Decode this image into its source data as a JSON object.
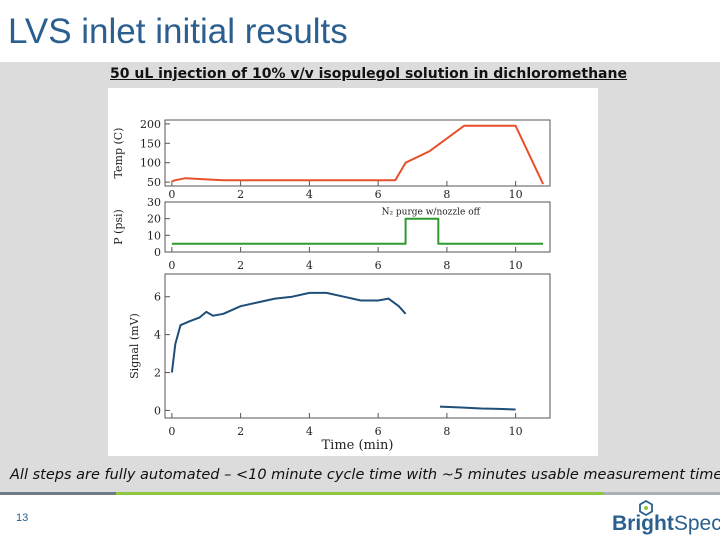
{
  "slide": {
    "title": "LVS inlet initial results",
    "subtitle": "50 uL injection of 10% v/v isopulegol solution in dichloromethane",
    "caption": "All steps are fully automated – <10 minute cycle time with ~5 minutes usable measurement time",
    "page_number": "13",
    "logo": {
      "part1": "Bright",
      "part2": "Spec",
      "icon": "hexagon-molecule-icon"
    }
  },
  "colors": {
    "title": "#2a5f8f",
    "temp_series": "#e8502c",
    "pressure_series": "#2e9a2e",
    "signal_series": "#1f4e79",
    "accent_green": "#8dc63f"
  },
  "chart_data": [
    {
      "type": "line",
      "ylabel": "Temp (C)",
      "xlim": [
        -0.2,
        11
      ],
      "ylim": [
        40,
        210
      ],
      "yticks": [
        50,
        100,
        150,
        200
      ],
      "yticklabels": [
        "50",
        "100",
        "150",
        "200"
      ],
      "xticks": [
        0,
        2,
        4,
        6,
        8,
        10
      ],
      "series": [
        {
          "x": [
            0.0,
            0.1,
            0.4,
            1.0,
            1.5,
            2.0,
            6.5,
            6.8,
            7.5,
            8.5,
            10.0,
            10.8
          ],
          "y": [
            52,
            55,
            60,
            57,
            55,
            55,
            55,
            100,
            130,
            195,
            195,
            45
          ]
        }
      ]
    },
    {
      "type": "line",
      "ylabel": "P (psi)",
      "xlim": [
        -0.2,
        11
      ],
      "ylim": [
        0,
        30
      ],
      "yticks": [
        0,
        10,
        20,
        30
      ],
      "yticklabels": [
        "0",
        "10",
        "20",
        "30"
      ],
      "xticks": [
        0,
        2,
        4,
        6,
        8,
        10
      ],
      "annotations": [
        {
          "text": "N₂ purge w/nozzle off",
          "x": 6.1,
          "y": 25
        }
      ],
      "series": [
        {
          "x": [
            0.0,
            6.8,
            6.8,
            7.75,
            7.75,
            10.8
          ],
          "y": [
            5,
            5,
            20,
            20,
            5,
            5
          ]
        }
      ]
    },
    {
      "type": "line",
      "xlabel": "Time (min)",
      "ylabel": "Signal (mV)",
      "xlim": [
        -0.2,
        11
      ],
      "ylim": [
        -0.4,
        7.2
      ],
      "yticks": [
        0,
        2,
        4,
        6
      ],
      "yticklabels": [
        "0",
        "2",
        "4",
        "6"
      ],
      "xticks": [
        0,
        2,
        4,
        6,
        8,
        10
      ],
      "series": [
        {
          "x": [
            0.0,
            0.1,
            0.25,
            0.5,
            0.8,
            1.0,
            1.2,
            1.5,
            2.0,
            2.5,
            3.0,
            3.5,
            4.0,
            4.5,
            5.0,
            5.5,
            6.0,
            6.3,
            6.6,
            6.8
          ],
          "y": [
            2.0,
            3.5,
            4.5,
            4.7,
            4.9,
            5.2,
            5.0,
            5.1,
            5.5,
            5.7,
            5.9,
            6.0,
            6.2,
            6.2,
            6.0,
            5.8,
            5.8,
            5.9,
            5.5,
            5.1
          ]
        },
        {
          "x": [
            7.8,
            8.5,
            9.0,
            9.5,
            10.0
          ],
          "y": [
            0.2,
            0.15,
            0.1,
            0.08,
            0.05
          ]
        }
      ]
    }
  ]
}
